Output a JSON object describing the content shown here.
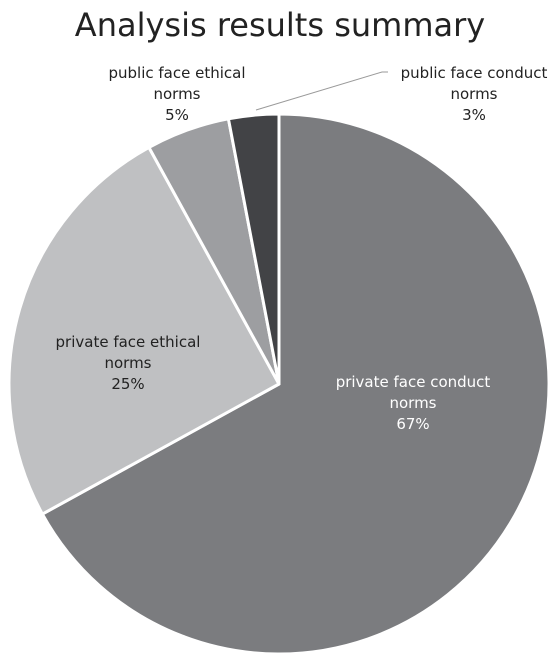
{
  "chart_data": {
    "type": "pie",
    "title": "Analysis results summary",
    "start_angle_deg": 0,
    "direction": "clockwise",
    "slices": [
      {
        "label_lines": [
          "private face conduct",
          "norms"
        ],
        "percent_label": "67%",
        "value": 67,
        "color": "#7b7c7f",
        "label_color": "#ffffff"
      },
      {
        "label_lines": [
          "private face ethical",
          "norms"
        ],
        "percent_label": "25%",
        "value": 25,
        "color": "#bfc0c2",
        "label_color": "#222222"
      },
      {
        "label_lines": [
          "public face ethical",
          "norms"
        ],
        "percent_label": "5%",
        "value": 5,
        "color": "#9d9ea1",
        "label_color": "#222222"
      },
      {
        "label_lines": [
          "public face conduct",
          "norms"
        ],
        "percent_label": "3%",
        "value": 3,
        "color": "#424346",
        "label_color": "#222222"
      }
    ]
  }
}
